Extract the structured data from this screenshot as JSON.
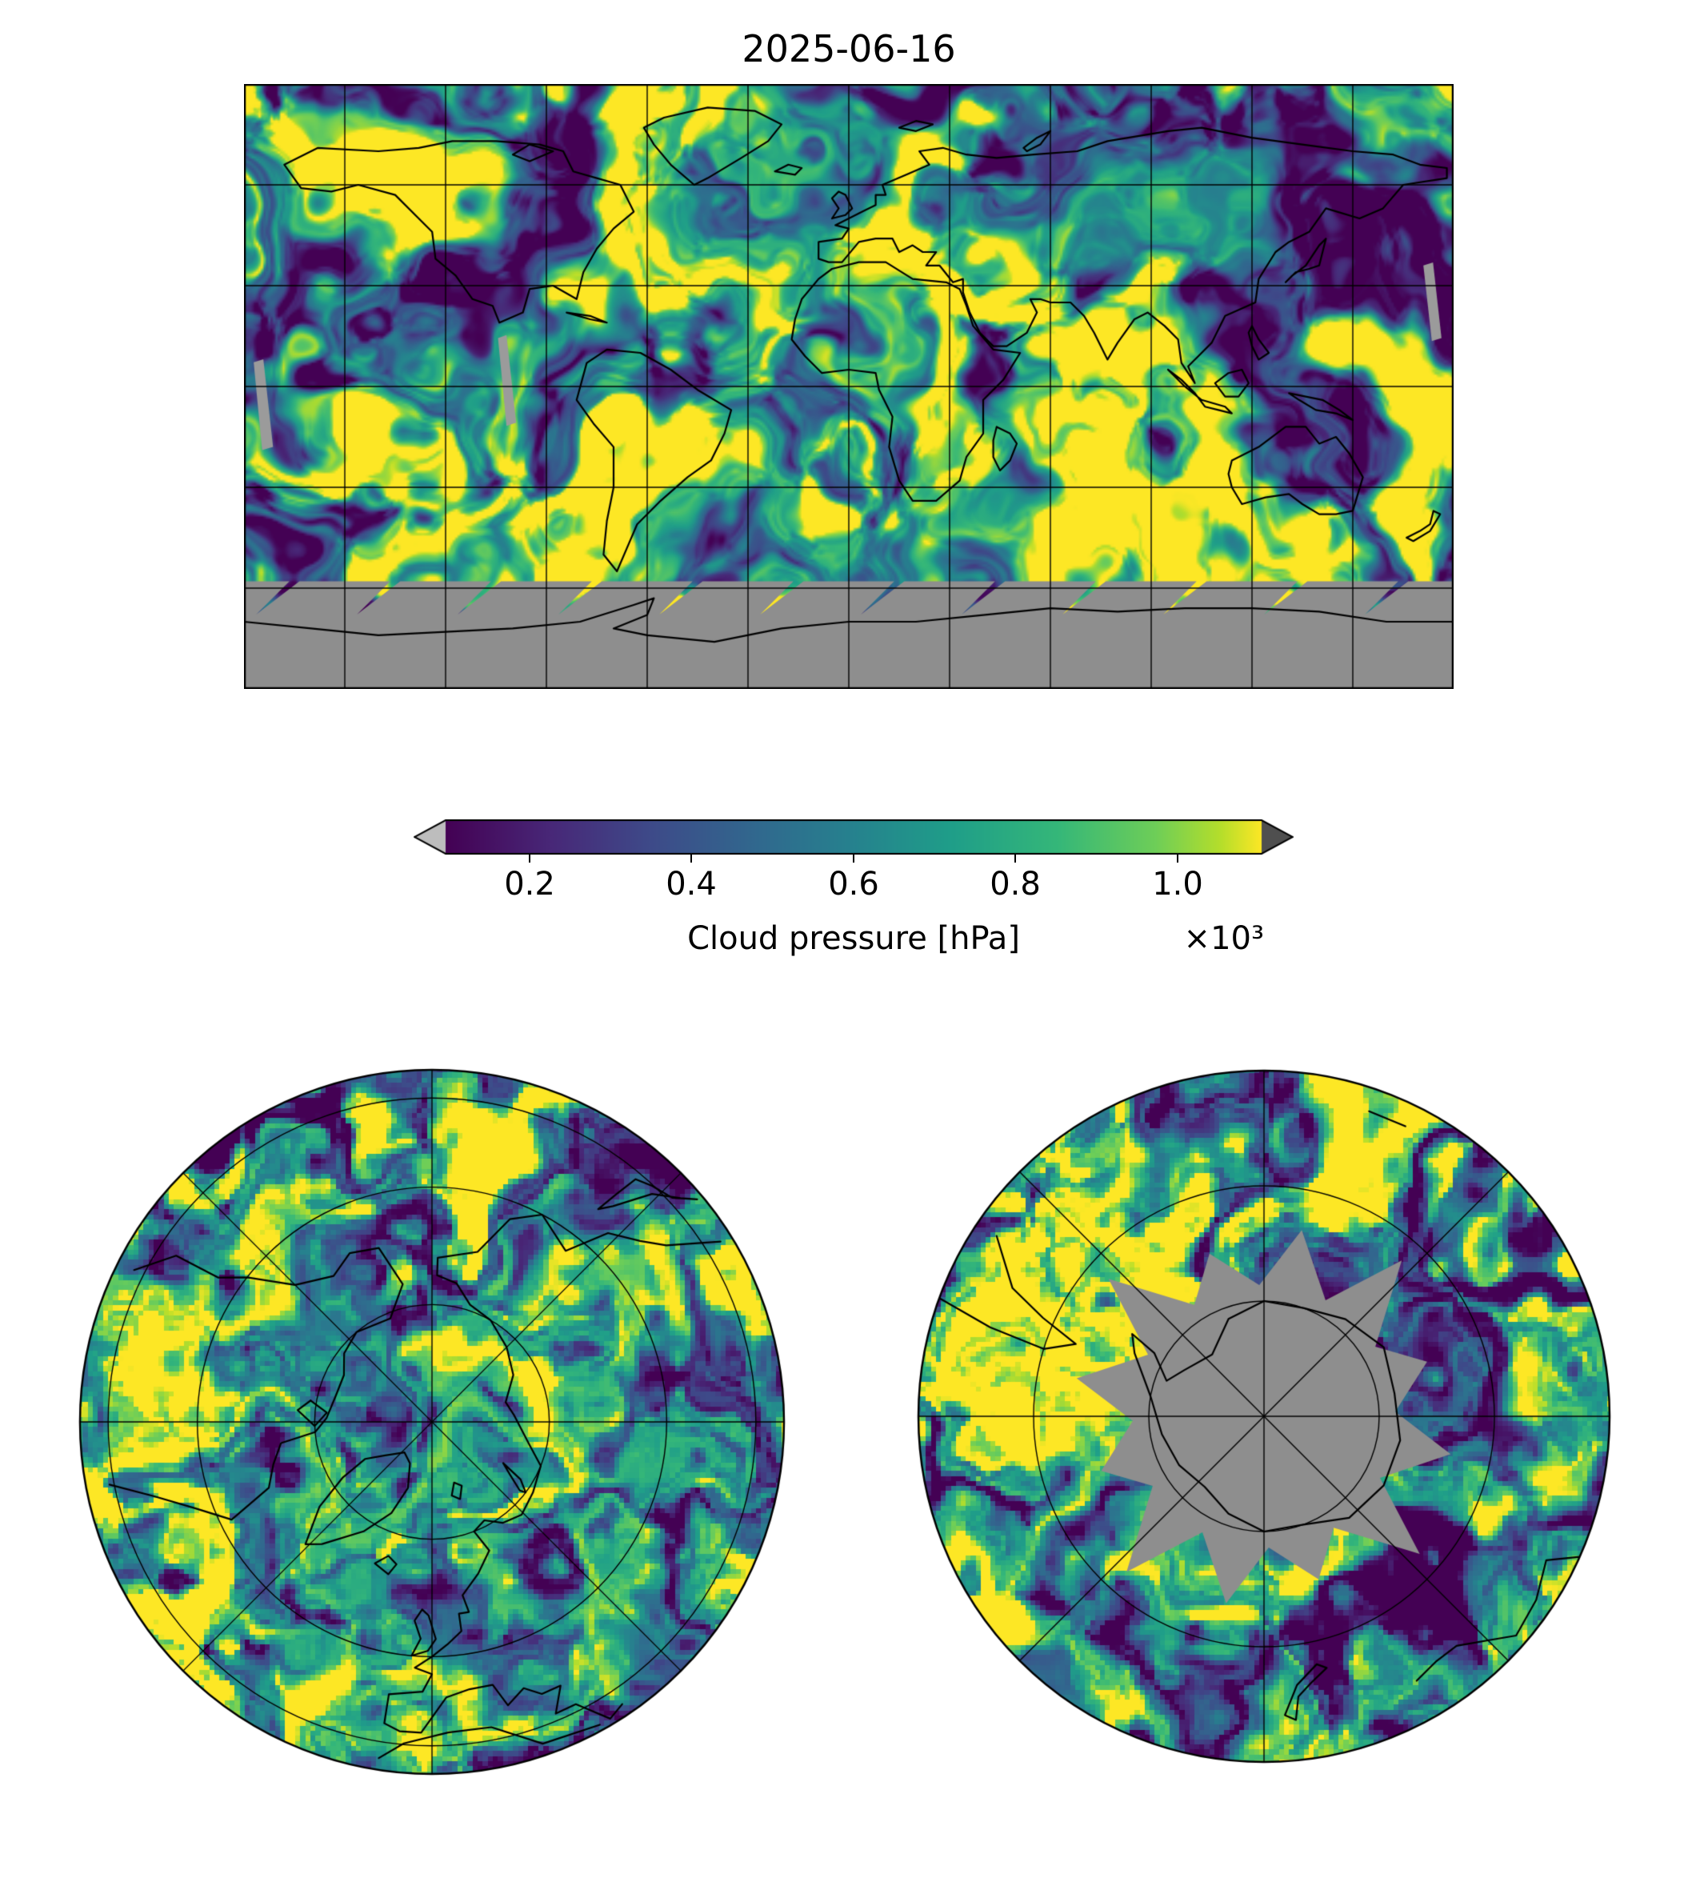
{
  "title": "2025-06-16",
  "colorbar": {
    "label": "Cloud pressure [hPa]",
    "multiplier": "×10³",
    "ticks": [
      "0.2",
      "0.4",
      "0.6",
      "0.8",
      "1.0"
    ],
    "colormap": "viridis",
    "under_arrow_color": "#bdbdbd",
    "over_arrow_color": "#4f4f4f"
  },
  "chart_data": {
    "type": "heatmap",
    "title": "2025-06-16",
    "variable": "Cloud pressure [hPa]",
    "units": "hPa",
    "scale_note": "colorbar tick values are ×10³ hPa",
    "colorbar_ticks": [
      0.2,
      0.4,
      0.6,
      0.8,
      1.0
    ],
    "approx_range_hPa": [
      100,
      1100
    ],
    "colormap": "viridis",
    "no_data_color": "#8e8e8e",
    "panels": [
      {
        "name": "global",
        "projection": "equirectangular",
        "gridlines_deg": 30,
        "note": "satellite cloud pressure field; gray band south of ~58°S = no data; black coastlines"
      },
      {
        "name": "north-polar",
        "projection": "azimuthal over North Pole",
        "meridians_deg": 45,
        "note": "full data coverage, blocky satellite pixels"
      },
      {
        "name": "south-polar",
        "projection": "azimuthal over South Pole",
        "meridians_deg": 45,
        "note": "jagged gray central region over Antarctica = no data (polar night)"
      }
    ]
  }
}
